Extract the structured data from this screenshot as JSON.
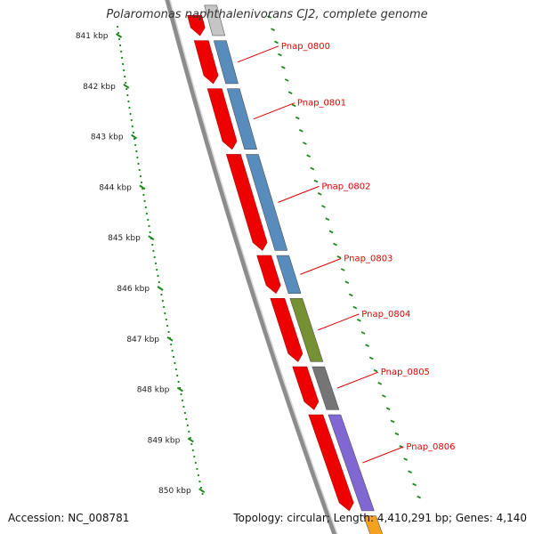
{
  "title": "Polaromonas naphthalenivorans CJ2, complete genome",
  "footer": {
    "accession": "Accession: NC_008781",
    "summary": "Topology: circular; Length: 4,410,291 bp; Genes: 4,140"
  },
  "colors": {
    "cds_arrow": "#ee0000",
    "backbone": "#8c8c8c",
    "ticks": "#1a8a1a",
    "label": "#e00000"
  },
  "map": {
    "kbp_unit": "kbp",
    "scale_ticks": [
      {
        "pos_kbp": 841,
        "label": "841 kbp"
      },
      {
        "pos_kbp": 842,
        "label": "842 kbp"
      },
      {
        "pos_kbp": 843,
        "label": "843 kbp"
      },
      {
        "pos_kbp": 844,
        "label": "844 kbp"
      },
      {
        "pos_kbp": 845,
        "label": "845 kbp"
      },
      {
        "pos_kbp": 846,
        "label": "846 kbp"
      },
      {
        "pos_kbp": 847,
        "label": "847 kbp"
      },
      {
        "pos_kbp": 848,
        "label": "848 kbp"
      },
      {
        "pos_kbp": 849,
        "label": "849 kbp"
      },
      {
        "pos_kbp": 850,
        "label": "850 kbp"
      }
    ],
    "cds_arrows_kbp": [
      [
        840.6,
        841.0
      ],
      [
        841.1,
        841.95
      ],
      [
        842.05,
        843.25
      ],
      [
        843.35,
        845.25
      ],
      [
        845.35,
        846.1
      ],
      [
        846.2,
        847.45
      ],
      [
        847.55,
        848.4
      ],
      [
        848.5,
        850.4
      ]
    ],
    "genes": [
      {
        "label": "Pnap_0800",
        "start_kbp": 841.1,
        "end_kbp": 841.95,
        "color": "#4f86b9"
      },
      {
        "label": "Pnap_0801",
        "start_kbp": 842.05,
        "end_kbp": 843.25,
        "color": "#4f86b9"
      },
      {
        "label": "Pnap_0802",
        "start_kbp": 843.35,
        "end_kbp": 845.25,
        "color": "#4f86b9"
      },
      {
        "label": "Pnap_0803",
        "start_kbp": 845.35,
        "end_kbp": 846.1,
        "color": "#4f86b9"
      },
      {
        "label": "Pnap_0804",
        "start_kbp": 846.2,
        "end_kbp": 847.45,
        "color": "#6f8c2a"
      },
      {
        "label": "Pnap_0805",
        "start_kbp": 847.55,
        "end_kbp": 848.4,
        "color": "#6e6e6e"
      },
      {
        "label": "Pnap_0806",
        "start_kbp": 848.5,
        "end_kbp": 850.4,
        "color": "#7b5fcf"
      }
    ],
    "extra_blocks_kbp": [
      {
        "start_kbp": 840.4,
        "end_kbp": 841.0,
        "color": "#c2c2c2"
      },
      {
        "start_kbp": 850.5,
        "end_kbp": 850.9,
        "color": "#f39c12"
      }
    ]
  }
}
